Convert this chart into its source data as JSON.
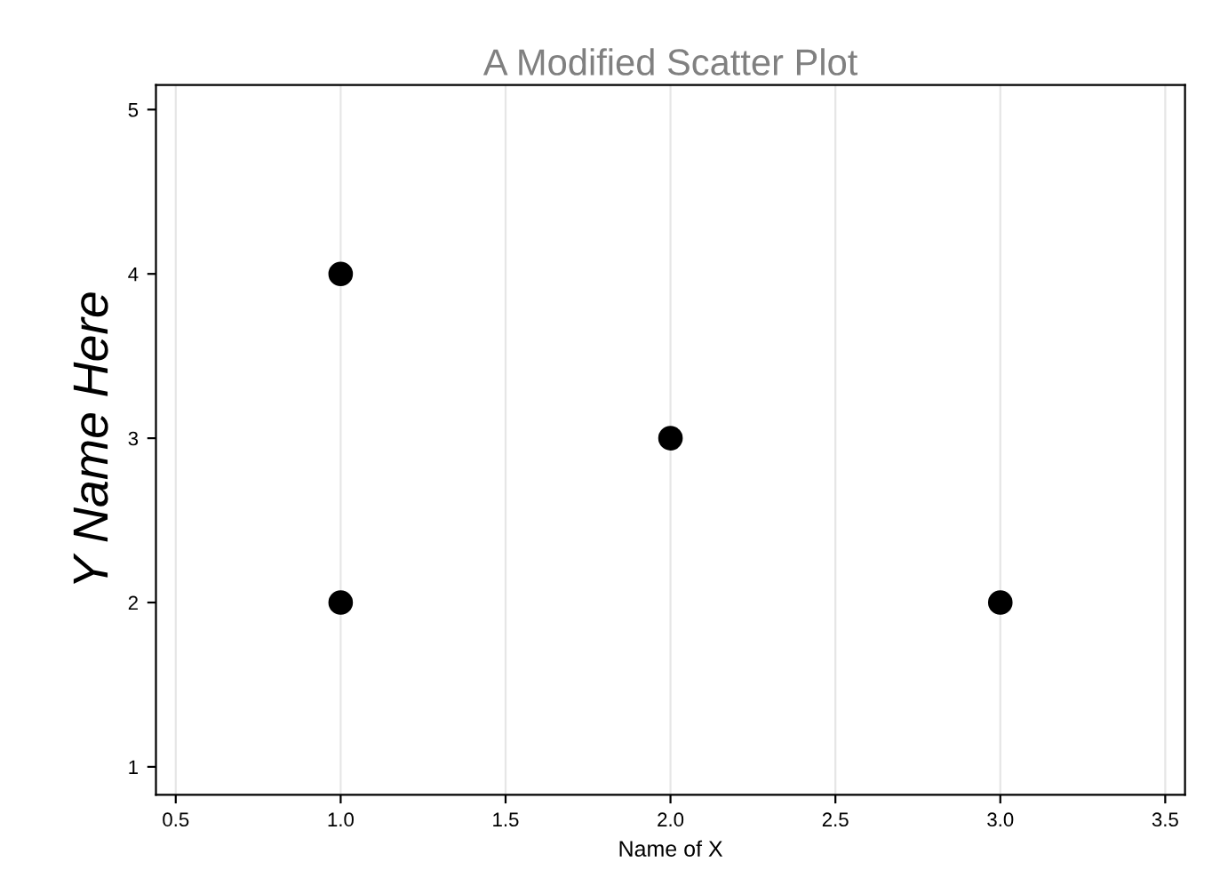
{
  "chart_data": {
    "type": "scatter",
    "title": "A Modified Scatter Plot",
    "xlabel": "Name of X",
    "ylabel": "Y Name Here",
    "series": [
      {
        "color": "#000000",
        "x": [
          1,
          1,
          2,
          3
        ],
        "values": [
          4,
          2,
          3,
          2
        ]
      }
    ],
    "xlim": [
      0.44,
      3.56
    ],
    "xticks": [
      0.5,
      {
        "value": 1,
        "label": "1.0"
      },
      1.5,
      {
        "value": 2,
        "label": "2.0"
      },
      2.5,
      {
        "value": 3,
        "label": "3.0"
      },
      3.5
    ],
    "ylim": [
      0.83,
      5.15
    ],
    "yticks": [
      1,
      2,
      3,
      4,
      5
    ],
    "grid": "x",
    "marker": "circle",
    "legend": false
  }
}
